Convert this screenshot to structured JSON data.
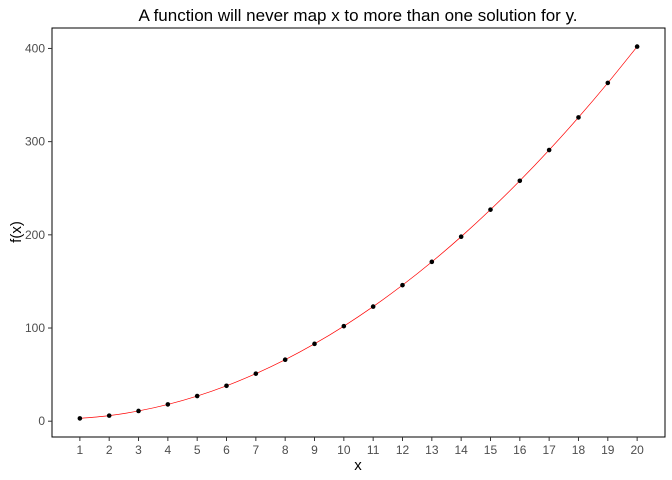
{
  "chart_data": {
    "type": "scatter",
    "title": "A function will never map x to more than one solution for y.",
    "xlabel": "x",
    "ylabel": "f(x)",
    "x": [
      1,
      2,
      3,
      4,
      5,
      6,
      7,
      8,
      9,
      10,
      11,
      12,
      13,
      14,
      15,
      16,
      17,
      18,
      19,
      20
    ],
    "series": [
      {
        "values": [
          3,
          6,
          11,
          18,
          27,
          38,
          51,
          66,
          83,
          102,
          123,
          146,
          171,
          198,
          227,
          258,
          291,
          326,
          363,
          402
        ],
        "marker_color": "#000000",
        "line_color": "#ff0000"
      }
    ],
    "xticks": [
      "1",
      "2",
      "3",
      "4",
      "5",
      "6",
      "7",
      "8",
      "9",
      "10",
      "11",
      "12",
      "13",
      "14",
      "15",
      "16",
      "17",
      "18",
      "19",
      "20"
    ],
    "yticks": [
      "0",
      "100",
      "200",
      "300",
      "400"
    ],
    "xlim": [
      0.05,
      20.95
    ],
    "ylim": [
      -16.95,
      421.95
    ],
    "grid": false
  }
}
